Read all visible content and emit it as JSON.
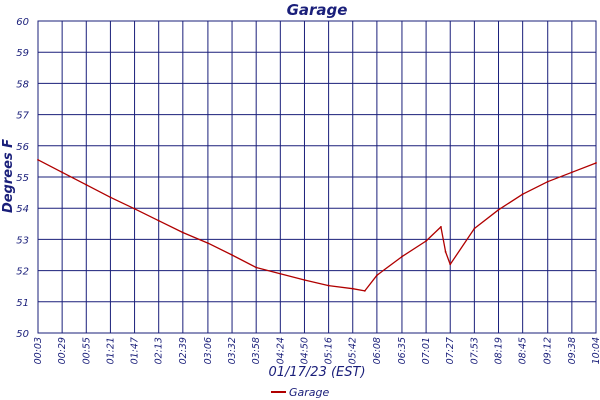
{
  "chart_data": {
    "type": "line",
    "title": "Garage",
    "xlabel": "01/17/23 (EST)",
    "ylabel": "Degrees F",
    "ylim": [
      50,
      60
    ],
    "yticks": [
      50,
      51,
      52,
      53,
      54,
      55,
      56,
      57,
      58,
      59,
      60
    ],
    "xticks": [
      "00:03",
      "00:29",
      "00:55",
      "01:21",
      "01:47",
      "02:13",
      "02:39",
      "03:06",
      "03:32",
      "03:58",
      "04:24",
      "04:50",
      "05:16",
      "05:42",
      "06:08",
      "06:35",
      "07:01",
      "07:27",
      "07:53",
      "08:19",
      "08:45",
      "09:12",
      "09:38",
      "10:04"
    ],
    "grid": true,
    "legend": "bottom-center",
    "colors": {
      "series": "#b00000",
      "grid": "#1a1f7a",
      "text": "#1a1f7a"
    },
    "series": [
      {
        "name": "Garage",
        "x": [
          "00:03",
          "00:29",
          "00:55",
          "01:21",
          "01:47",
          "02:13",
          "02:39",
          "03:06",
          "03:32",
          "03:58",
          "04:24",
          "04:50",
          "05:16",
          "05:42",
          "05:55",
          "06:08",
          "06:35",
          "07:01",
          "07:17",
          "07:22",
          "07:27",
          "07:53",
          "08:19",
          "08:45",
          "09:12",
          "09:38",
          "10:04"
        ],
        "values": [
          55.55,
          55.15,
          54.75,
          54.35,
          53.98,
          53.6,
          53.22,
          52.88,
          52.5,
          52.1,
          51.9,
          51.7,
          51.52,
          51.42,
          51.35,
          51.85,
          52.45,
          52.95,
          53.4,
          52.6,
          52.2,
          53.35,
          53.95,
          54.45,
          54.85,
          55.15,
          55.45
        ]
      }
    ]
  }
}
